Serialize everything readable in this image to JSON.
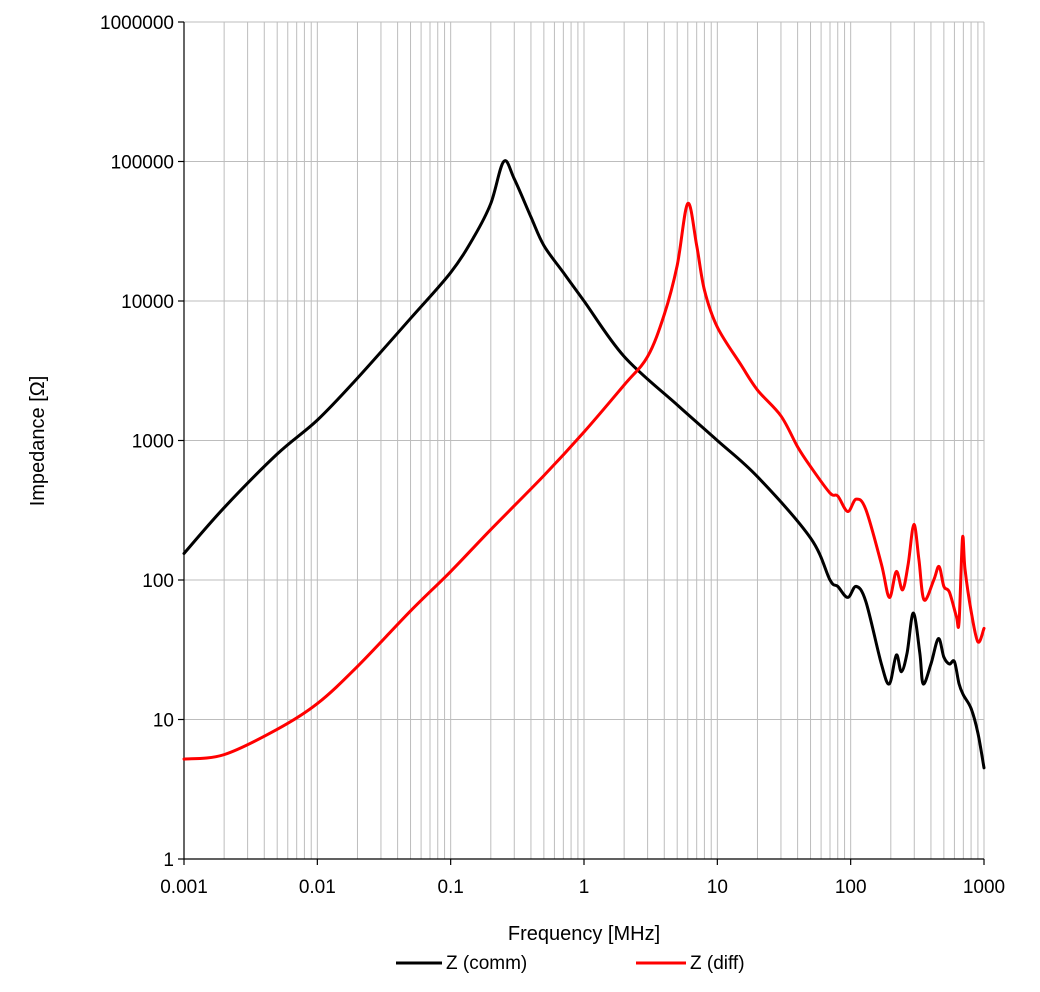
{
  "chart_data": {
    "type": "line",
    "title": "",
    "xlabel": "Frequency [MHz]",
    "ylabel": "Impedance [Ω]",
    "x_scale": "log",
    "y_scale": "log",
    "xlim": [
      0.001,
      1000
    ],
    "ylim": [
      1,
      1000000
    ],
    "x_ticks": [
      "0.001",
      "0.01",
      "0.1",
      "1",
      "10",
      "100",
      "1000"
    ],
    "y_ticks": [
      "1",
      "10",
      "100",
      "1000",
      "10000",
      "100000",
      "1000000"
    ],
    "grid": true,
    "legend_position": "bottom",
    "series": [
      {
        "name": "Z (comm)",
        "color": "#000000",
        "points": [
          [
            0.001,
            155
          ],
          [
            0.002,
            330
          ],
          [
            0.005,
            800
          ],
          [
            0.01,
            1400
          ],
          [
            0.02,
            2800
          ],
          [
            0.05,
            7500
          ],
          [
            0.1,
            16000
          ],
          [
            0.15,
            29000
          ],
          [
            0.2,
            50000
          ],
          [
            0.25,
            100000
          ],
          [
            0.3,
            75000
          ],
          [
            0.4,
            40000
          ],
          [
            0.5,
            25000
          ],
          [
            0.7,
            16000
          ],
          [
            1,
            10000
          ],
          [
            2,
            4000
          ],
          [
            5,
            1800
          ],
          [
            10,
            1000
          ],
          [
            20,
            550
          ],
          [
            50,
            200
          ],
          [
            70,
            100
          ],
          [
            80,
            90
          ],
          [
            95,
            75
          ],
          [
            110,
            90
          ],
          [
            130,
            70
          ],
          [
            170,
            25
          ],
          [
            195,
            18
          ],
          [
            220,
            29
          ],
          [
            240,
            22
          ],
          [
            265,
            30
          ],
          [
            295,
            58
          ],
          [
            330,
            30
          ],
          [
            350,
            18
          ],
          [
            400,
            25
          ],
          [
            455,
            38
          ],
          [
            500,
            28
          ],
          [
            550,
            25
          ],
          [
            600,
            26
          ],
          [
            650,
            18
          ],
          [
            700,
            15
          ],
          [
            800,
            12
          ],
          [
            900,
            8
          ],
          [
            1000,
            4.5
          ]
        ]
      },
      {
        "name": "Z (diff)",
        "color": "#ff0000",
        "points": [
          [
            0.001,
            5.2
          ],
          [
            0.002,
            5.6
          ],
          [
            0.005,
            8.5
          ],
          [
            0.01,
            13
          ],
          [
            0.02,
            24
          ],
          [
            0.05,
            60
          ],
          [
            0.1,
            115
          ],
          [
            0.2,
            230
          ],
          [
            0.5,
            560
          ],
          [
            1,
            1150
          ],
          [
            2,
            2500
          ],
          [
            3,
            4000
          ],
          [
            4,
            8000
          ],
          [
            5,
            18000
          ],
          [
            6,
            50000
          ],
          [
            7,
            25000
          ],
          [
            8,
            12000
          ],
          [
            10,
            6500
          ],
          [
            15,
            3500
          ],
          [
            20,
            2300
          ],
          [
            30,
            1500
          ],
          [
            40,
            900
          ],
          [
            50,
            650
          ],
          [
            70,
            420
          ],
          [
            80,
            400
          ],
          [
            95,
            310
          ],
          [
            110,
            380
          ],
          [
            130,
            320
          ],
          [
            170,
            130
          ],
          [
            195,
            75
          ],
          [
            220,
            115
          ],
          [
            245,
            85
          ],
          [
            270,
            130
          ],
          [
            298,
            250
          ],
          [
            325,
            140
          ],
          [
            355,
            72
          ],
          [
            420,
            100
          ],
          [
            460,
            125
          ],
          [
            500,
            90
          ],
          [
            550,
            82
          ],
          [
            620,
            55
          ],
          [
            650,
            50
          ],
          [
            690,
            200
          ],
          [
            720,
            120
          ],
          [
            800,
            60
          ],
          [
            900,
            36
          ],
          [
            1000,
            45
          ]
        ]
      }
    ]
  }
}
